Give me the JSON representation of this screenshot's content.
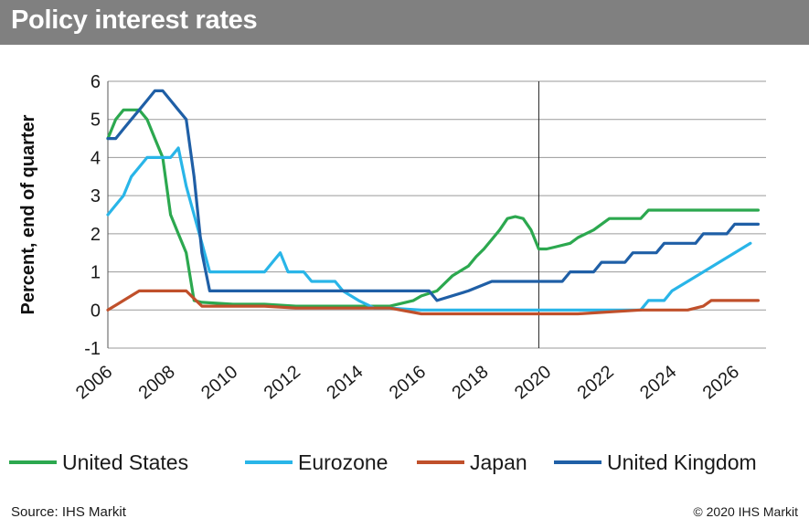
{
  "title": "Policy interest rates",
  "footer": {
    "source": "Source: IHS Markit",
    "copyright": "© 2020 IHS Markit"
  },
  "chart_data": {
    "type": "line",
    "ylabel": "Percent, end of quarter",
    "xlim": [
      2006,
      2027
    ],
    "ylim": [
      -1,
      6
    ],
    "xticks": [
      2006,
      2008,
      2010,
      2012,
      2014,
      2016,
      2018,
      2020,
      2022,
      2024,
      2026
    ],
    "yticks": [
      -1,
      0,
      1,
      2,
      3,
      4,
      5,
      6
    ],
    "grid": "horizontal",
    "reference_line_x": 2019.75,
    "legend_position": "bottom",
    "series": [
      {
        "name": "United States",
        "color": "#2ca84f",
        "points": [
          [
            2006.0,
            4.5
          ],
          [
            2006.25,
            5.0
          ],
          [
            2006.5,
            5.25
          ],
          [
            2007.0,
            5.25
          ],
          [
            2007.25,
            5.0
          ],
          [
            2007.5,
            4.5
          ],
          [
            2007.75,
            4.0
          ],
          [
            2008.0,
            2.5
          ],
          [
            2008.25,
            2.0
          ],
          [
            2008.5,
            1.5
          ],
          [
            2008.75,
            0.25
          ],
          [
            2009.0,
            0.2
          ],
          [
            2010.0,
            0.15
          ],
          [
            2011.0,
            0.15
          ],
          [
            2012.0,
            0.1
          ],
          [
            2013.0,
            0.1
          ],
          [
            2014.0,
            0.1
          ],
          [
            2015.0,
            0.1
          ],
          [
            2015.75,
            0.25
          ],
          [
            2016.0,
            0.37
          ],
          [
            2016.5,
            0.5
          ],
          [
            2017.0,
            0.9
          ],
          [
            2017.5,
            1.15
          ],
          [
            2017.75,
            1.4
          ],
          [
            2018.0,
            1.6
          ],
          [
            2018.25,
            1.85
          ],
          [
            2018.5,
            2.1
          ],
          [
            2018.75,
            2.4
          ],
          [
            2019.0,
            2.45
          ],
          [
            2019.25,
            2.4
          ],
          [
            2019.5,
            2.1
          ],
          [
            2019.75,
            1.6
          ],
          [
            2020.0,
            1.6
          ],
          [
            2020.25,
            1.65
          ],
          [
            2020.75,
            1.75
          ],
          [
            2021.0,
            1.9
          ],
          [
            2021.5,
            2.1
          ],
          [
            2021.75,
            2.25
          ],
          [
            2022.0,
            2.4
          ],
          [
            2023.0,
            2.4
          ],
          [
            2023.25,
            2.62
          ],
          [
            2024.0,
            2.62
          ],
          [
            2025.0,
            2.62
          ],
          [
            2026.0,
            2.62
          ],
          [
            2026.75,
            2.62
          ]
        ]
      },
      {
        "name": "Eurozone",
        "color": "#29b5e8",
        "points": [
          [
            2006.0,
            2.5
          ],
          [
            2006.5,
            3.0
          ],
          [
            2006.75,
            3.5
          ],
          [
            2007.0,
            3.75
          ],
          [
            2007.25,
            4.0
          ],
          [
            2008.0,
            4.0
          ],
          [
            2008.25,
            4.25
          ],
          [
            2008.5,
            3.25
          ],
          [
            2008.75,
            2.5
          ],
          [
            2009.0,
            1.75
          ],
          [
            2009.25,
            1.0
          ],
          [
            2010.0,
            1.0
          ],
          [
            2011.0,
            1.0
          ],
          [
            2011.25,
            1.25
          ],
          [
            2011.5,
            1.5
          ],
          [
            2011.75,
            1.0
          ],
          [
            2012.25,
            1.0
          ],
          [
            2012.5,
            0.75
          ],
          [
            2013.25,
            0.75
          ],
          [
            2013.5,
            0.5
          ],
          [
            2014.0,
            0.25
          ],
          [
            2014.5,
            0.05
          ],
          [
            2015.0,
            0.05
          ],
          [
            2016.0,
            0.0
          ],
          [
            2017.0,
            0.0
          ],
          [
            2019.0,
            0.0
          ],
          [
            2020.0,
            0.0
          ],
          [
            2021.0,
            0.0
          ],
          [
            2022.0,
            0.0
          ],
          [
            2023.0,
            0.0
          ],
          [
            2023.25,
            0.25
          ],
          [
            2023.75,
            0.25
          ],
          [
            2024.0,
            0.5
          ],
          [
            2024.5,
            0.75
          ],
          [
            2025.0,
            1.0
          ],
          [
            2025.5,
            1.25
          ],
          [
            2026.0,
            1.5
          ],
          [
            2026.5,
            1.75
          ]
        ]
      },
      {
        "name": "Japan",
        "color": "#c0502b",
        "points": [
          [
            2006.0,
            0.0
          ],
          [
            2006.5,
            0.25
          ],
          [
            2007.0,
            0.5
          ],
          [
            2008.5,
            0.5
          ],
          [
            2008.75,
            0.3
          ],
          [
            2009.0,
            0.1
          ],
          [
            2010.0,
            0.1
          ],
          [
            2011.0,
            0.1
          ],
          [
            2012.0,
            0.05
          ],
          [
            2013.0,
            0.05
          ],
          [
            2014.0,
            0.05
          ],
          [
            2015.0,
            0.05
          ],
          [
            2016.0,
            -0.1
          ],
          [
            2017.0,
            -0.1
          ],
          [
            2018.0,
            -0.1
          ],
          [
            2019.0,
            -0.1
          ],
          [
            2020.0,
            -0.1
          ],
          [
            2021.0,
            -0.1
          ],
          [
            2022.0,
            -0.05
          ],
          [
            2023.0,
            0.0
          ],
          [
            2024.5,
            0.0
          ],
          [
            2025.0,
            0.1
          ],
          [
            2025.25,
            0.25
          ],
          [
            2026.0,
            0.25
          ],
          [
            2026.75,
            0.25
          ]
        ]
      },
      {
        "name": "United Kingdom",
        "color": "#1f5fa6",
        "points": [
          [
            2006.0,
            4.5
          ],
          [
            2006.25,
            4.5
          ],
          [
            2006.5,
            4.75
          ],
          [
            2006.75,
            5.0
          ],
          [
            2007.0,
            5.25
          ],
          [
            2007.25,
            5.5
          ],
          [
            2007.5,
            5.75
          ],
          [
            2007.75,
            5.75
          ],
          [
            2008.0,
            5.5
          ],
          [
            2008.25,
            5.25
          ],
          [
            2008.5,
            5.0
          ],
          [
            2008.75,
            3.5
          ],
          [
            2009.0,
            1.5
          ],
          [
            2009.25,
            0.5
          ],
          [
            2010.0,
            0.5
          ],
          [
            2011.0,
            0.5
          ],
          [
            2012.0,
            0.5
          ],
          [
            2013.0,
            0.5
          ],
          [
            2014.0,
            0.5
          ],
          [
            2015.0,
            0.5
          ],
          [
            2016.25,
            0.5
          ],
          [
            2016.5,
            0.25
          ],
          [
            2017.5,
            0.5
          ],
          [
            2018.25,
            0.75
          ],
          [
            2019.0,
            0.75
          ],
          [
            2020.0,
            0.75
          ],
          [
            2020.5,
            0.75
          ],
          [
            2020.75,
            1.0
          ],
          [
            2021.5,
            1.0
          ],
          [
            2021.75,
            1.25
          ],
          [
            2022.5,
            1.25
          ],
          [
            2022.75,
            1.5
          ],
          [
            2023.5,
            1.5
          ],
          [
            2023.75,
            1.75
          ],
          [
            2024.75,
            1.75
          ],
          [
            2025.0,
            2.0
          ],
          [
            2025.75,
            2.0
          ],
          [
            2026.0,
            2.25
          ],
          [
            2026.75,
            2.25
          ]
        ]
      }
    ]
  }
}
